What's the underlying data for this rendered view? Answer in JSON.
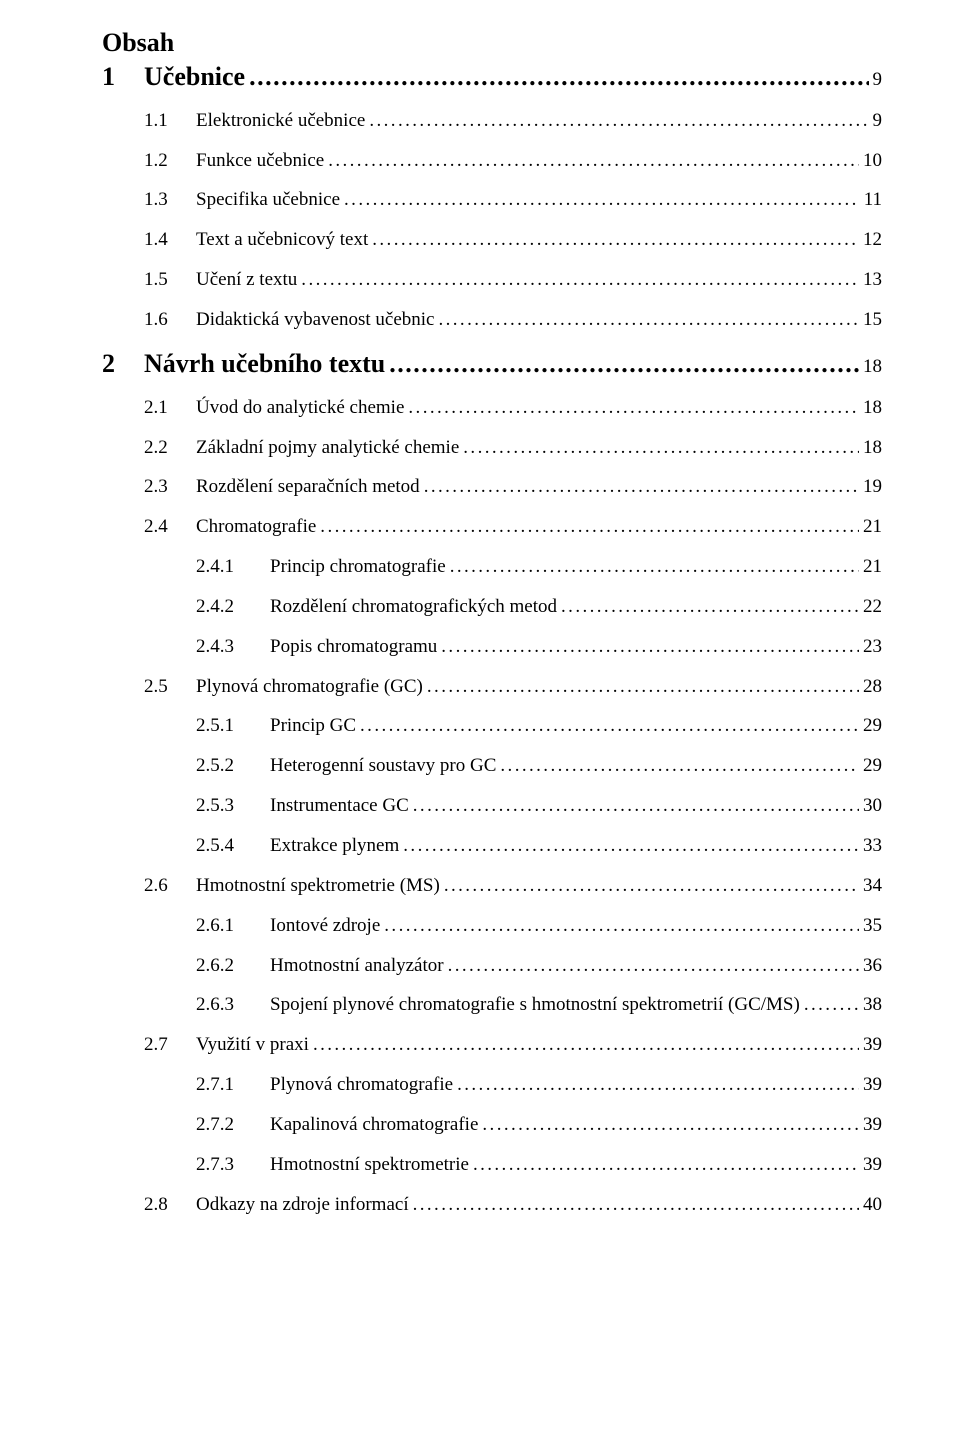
{
  "title": "Obsah",
  "chapters": [
    {
      "num": "1",
      "title": "Učebnice",
      "page": "9",
      "sections": [
        {
          "num": "1.1",
          "title": "Elektronické učebnice",
          "page": "9"
        },
        {
          "num": "1.2",
          "title": "Funkce učebnice",
          "page": "10"
        },
        {
          "num": "1.3",
          "title": "Specifika učebnice",
          "page": "11"
        },
        {
          "num": "1.4",
          "title": "Text a učebnicový text",
          "page": "12"
        },
        {
          "num": "1.5",
          "title": "Učení z textu",
          "page": "13"
        },
        {
          "num": "1.6",
          "title": "Didaktická vybavenost učebnic",
          "page": "15"
        }
      ]
    },
    {
      "num": "2",
      "title": "Návrh učebního textu",
      "page": "18",
      "sections": [
        {
          "num": "2.1",
          "title": "Úvod do analytické chemie",
          "page": "18"
        },
        {
          "num": "2.2",
          "title": "Základní pojmy analytické chemie",
          "page": "18"
        },
        {
          "num": "2.3",
          "title": "Rozdělení separačních metod",
          "page": "19"
        },
        {
          "num": "2.4",
          "title": "Chromatografie",
          "page": "21",
          "subs": [
            {
              "num": "2.4.1",
              "title": "Princip chromatografie",
              "page": "21"
            },
            {
              "num": "2.4.2",
              "title": "Rozdělení chromatografických metod",
              "page": "22"
            },
            {
              "num": "2.4.3",
              "title": "Popis chromatogramu",
              "page": "23"
            }
          ]
        },
        {
          "num": "2.5",
          "title": "Plynová chromatografie (GC)",
          "page": "28",
          "subs": [
            {
              "num": "2.5.1",
              "title": "Princip GC",
              "page": "29"
            },
            {
              "num": "2.5.2",
              "title": "Heterogenní soustavy pro GC",
              "page": "29"
            },
            {
              "num": "2.5.3",
              "title": "Instrumentace GC",
              "page": "30"
            },
            {
              "num": "2.5.4",
              "title": "Extrakce plynem",
              "page": "33"
            }
          ]
        },
        {
          "num": "2.6",
          "title": "Hmotnostní spektrometrie (MS)",
          "page": "34",
          "subs": [
            {
              "num": "2.6.1",
              "title": "Iontové zdroje",
              "page": "35"
            },
            {
              "num": "2.6.2",
              "title": "Hmotnostní analyzátor",
              "page": "36"
            },
            {
              "num": "2.6.3",
              "title": "Spojení plynové chromatografie s hmotnostní spektrometrií (GC/MS)",
              "page": "38"
            }
          ]
        },
        {
          "num": "2.7",
          "title": "Využití v praxi",
          "page": "39",
          "subs": [
            {
              "num": "2.7.1",
              "title": "Plynová chromatografie",
              "page": "39"
            },
            {
              "num": "2.7.2",
              "title": "Kapalinová chromatografie",
              "page": "39"
            },
            {
              "num": "2.7.3",
              "title": "Hmotnostní spektrometrie",
              "page": "39"
            }
          ]
        },
        {
          "num": "2.8",
          "title": "Odkazy na zdroje informací",
          "page": "40"
        }
      ]
    }
  ],
  "colors": {
    "text": "#000000",
    "background": "#ffffff"
  },
  "typography": {
    "body_font": "Times New Roman",
    "title_fontsize_pt": 20,
    "chapter_fontsize_pt": 20,
    "entry_fontsize_pt": 14
  }
}
